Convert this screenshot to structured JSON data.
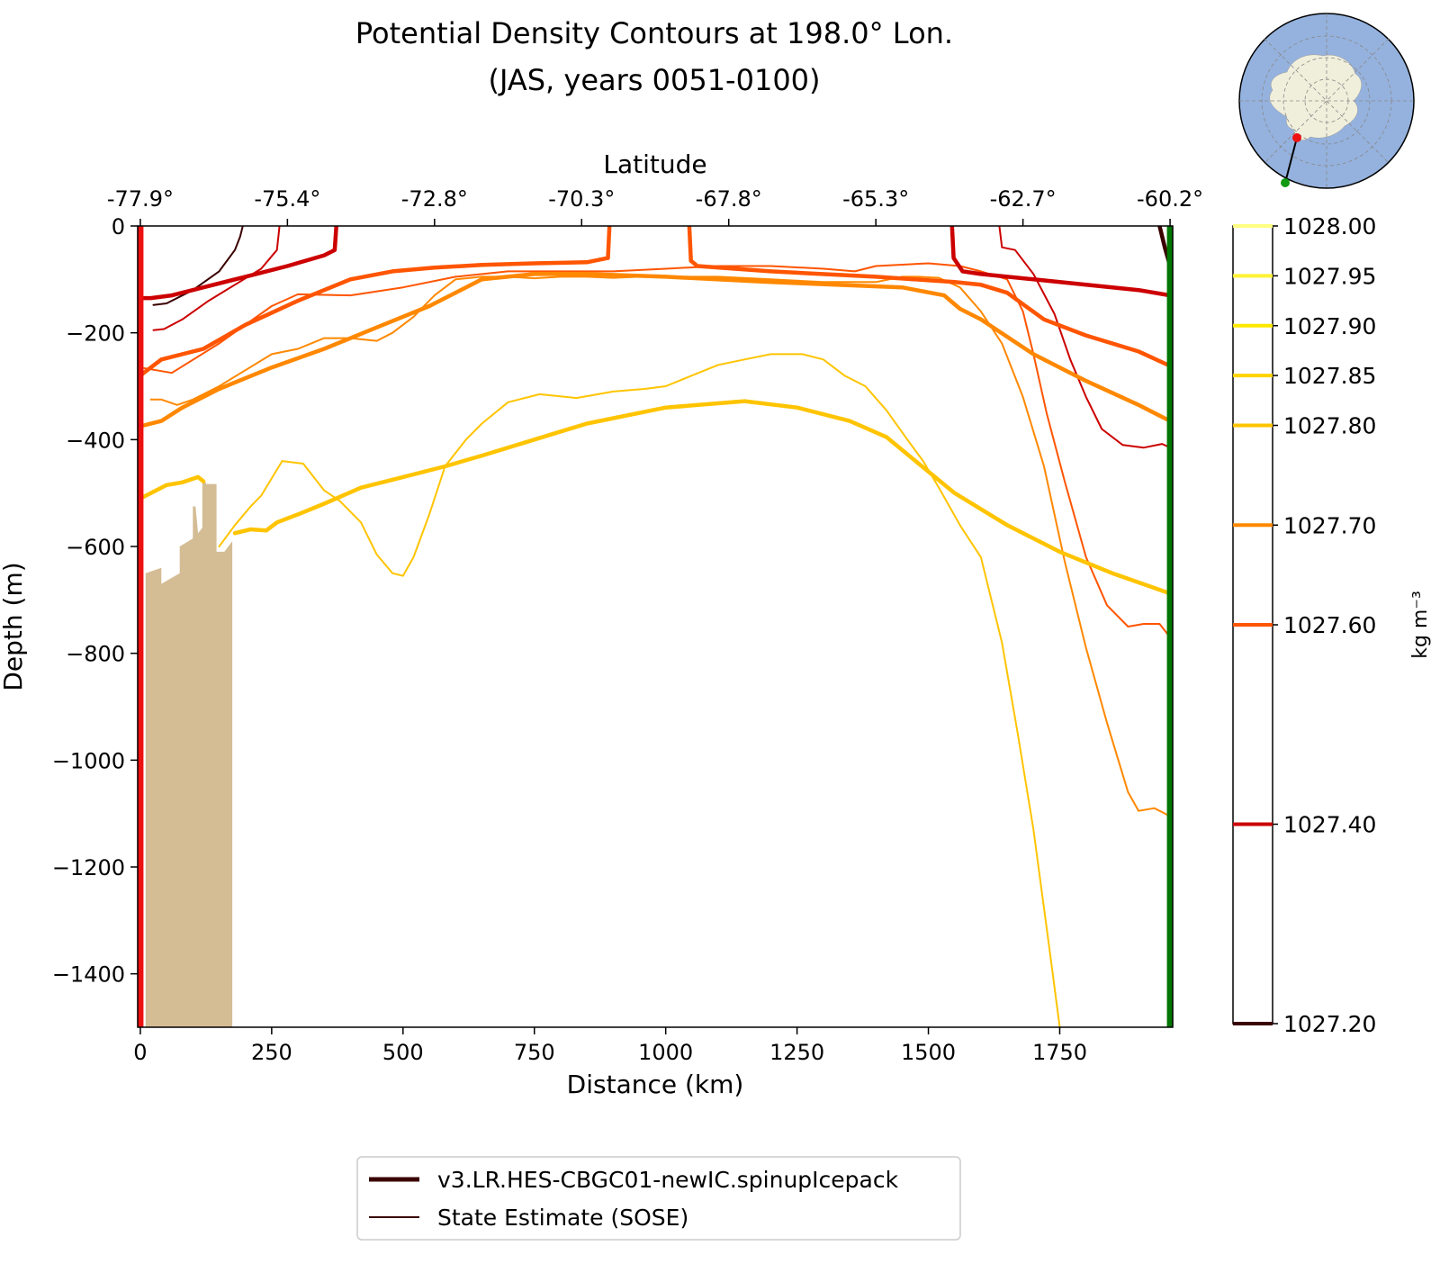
{
  "figure": {
    "title_line1": "Potential Density Contours at 198.0° Lon.",
    "title_line2": "(JAS, years 0051-0100)"
  },
  "chart_data": {
    "type": "line",
    "subtype": "contour-section",
    "title": "Potential Density Contours at 198.0° Lon. (JAS, years 0051-0100)",
    "xlabel": "Distance (km)",
    "ylabel": "Depth (m)",
    "top_xlabel": "Latitude",
    "xlim": [
      -5,
      1965
    ],
    "ylim": [
      -1500,
      0
    ],
    "x_ticks": [
      0,
      250,
      500,
      750,
      1000,
      1250,
      1500,
      1750
    ],
    "y_ticks": [
      0,
      -200,
      -400,
      -600,
      -800,
      -1000,
      -1200,
      -1400
    ],
    "x_tick_labels": [
      "0",
      "250",
      "500",
      "750",
      "1000",
      "1250",
      "1500",
      "1750"
    ],
    "y_tick_labels": [
      "0",
      "−200",
      "−400",
      "−600",
      "−800",
      "−1000",
      "−1200",
      "−1400"
    ],
    "top_ticks": [
      0,
      280,
      560,
      840,
      1120,
      1400,
      1680,
      1960
    ],
    "top_tick_labels": [
      "-77.9°",
      "-75.4°",
      "-72.8°",
      "-70.3°",
      "-67.8°",
      "-65.3°",
      "-62.7°",
      "-60.2°"
    ],
    "grid": false,
    "legend_position": "bottom-center",
    "legend": [
      {
        "label": "v3.LR.HES-CBGC01-newIC.spinupIcepack",
        "style": "thick"
      },
      {
        "label": "State Estimate (SOSE)",
        "style": "thin"
      }
    ],
    "colorbar": {
      "label": "kg m⁻³",
      "levels": [
        1027.2,
        1027.4,
        1027.6,
        1027.7,
        1027.8,
        1027.85,
        1027.9,
        1027.95,
        1028.0
      ],
      "tick_labels": [
        "1027.20",
        "1027.40",
        "1027.60",
        "1027.70",
        "1027.80",
        "1027.85",
        "1027.90",
        "1027.95",
        "1028.00"
      ],
      "colors": [
        "#3a0000",
        "#cc0000",
        "#ff5500",
        "#ff8800",
        "#ffc400",
        "#ffd300",
        "#ffe800",
        "#fff233",
        "#ffff80"
      ]
    },
    "markers": {
      "start_line_x": 0,
      "start_line_color": "#ee1111",
      "end_line_x": 1960,
      "end_line_color": "#007700"
    },
    "bathymetry": {
      "color": "#d4bc94",
      "x": [
        0,
        10,
        10,
        40,
        40,
        75,
        75,
        100,
        100,
        105,
        110,
        118,
        118,
        125,
        125,
        145,
        145,
        150,
        150,
        160,
        175,
        175
      ],
      "depth": [
        -1500,
        -1500,
        -650,
        -640,
        -670,
        -650,
        -600,
        -585,
        -525,
        -525,
        -575,
        -565,
        -480,
        -480,
        -483,
        -483,
        -610,
        -610,
        -610,
        -610,
        -590,
        -1500
      ]
    },
    "series": [
      {
        "model": "v3.LR.HES-CBGC01-newIC.spinupIcepack",
        "level": 1027.2,
        "segments": [
          {
            "x": [
              1940,
              1950,
              1960
            ],
            "y": [
              0,
              -40,
              -75
            ]
          }
        ]
      },
      {
        "model": "v3.LR.HES-CBGC01-newIC.spinupIcepack",
        "level": 1027.4,
        "segments": [
          {
            "x": [
              0,
              20,
              60,
              120,
              200,
              280,
              350,
              370,
              373
            ],
            "y": [
              -135,
              -135,
              -130,
              -115,
              -95,
              -75,
              -55,
              -45,
              0
            ]
          },
          {
            "x": [
              1545,
              1548,
              1565,
              1600,
              1700,
              1800,
              1900,
              1960
            ],
            "y": [
              0,
              -60,
              -85,
              -90,
              -100,
              -110,
              -120,
              -130
            ]
          }
        ]
      },
      {
        "model": "v3.LR.HES-CBGC01-newIC.spinupIcepack",
        "level": 1027.6,
        "segments": [
          {
            "x": [
              0,
              40,
              120,
              200,
              300,
              400,
              480,
              560,
              650,
              750,
              850,
              890,
              893
            ],
            "y": [
              -280,
              -250,
              -230,
              -185,
              -140,
              -100,
              -85,
              -78,
              -73,
              -70,
              -68,
              -60,
              0
            ]
          },
          {
            "x": [
              1045,
              1048,
              1060,
              1200,
              1400,
              1550,
              1600,
              1650,
              1720,
              1800,
              1900,
              1960
            ],
            "y": [
              0,
              -65,
              -75,
              -85,
              -95,
              -105,
              -110,
              -125,
              -175,
              -205,
              -235,
              -262
            ]
          }
        ]
      },
      {
        "model": "v3.LR.HES-CBGC01-newIC.spinupIcepack",
        "level": 1027.7,
        "segments": [
          {
            "x": [
              0,
              40,
              80,
              150,
              250,
              350,
              450,
              550,
              650,
              750,
              850,
              1000,
              1200,
              1450,
              1530,
              1560,
              1600,
              1700,
              1800,
              1900,
              1960
            ],
            "y": [
              -375,
              -365,
              -340,
              -305,
              -265,
              -230,
              -190,
              -150,
              -100,
              -90,
              -90,
              -95,
              -105,
              -115,
              -130,
              -155,
              -175,
              -240,
              -290,
              -335,
              -365
            ]
          }
        ]
      },
      {
        "model": "v3.LR.HES-CBGC01-newIC.spinupIcepack",
        "level": 1027.8,
        "segments": [
          {
            "x": [
              0,
              20,
              50,
              80,
              110,
              120
            ],
            "y": [
              -510,
              -500,
              -485,
              -480,
              -470,
              -478
            ]
          },
          {
            "x": [
              180,
              210,
              240,
              260,
              300,
              350,
              420,
              500,
              580,
              650,
              750,
              850,
              1000,
              1150,
              1250,
              1350,
              1420,
              1500,
              1550,
              1650,
              1750,
              1850,
              1960
            ],
            "y": [
              -575,
              -568,
              -570,
              -555,
              -540,
              -520,
              -490,
              -470,
              -450,
              -430,
              -400,
              -370,
              -340,
              -328,
              -340,
              -365,
              -395,
              -460,
              -500,
              -560,
              -610,
              -650,
              -688
            ]
          }
        ]
      },
      {
        "model": "State Estimate (SOSE)",
        "level": 1027.2,
        "segments": [
          {
            "x": [
              25,
              50,
              100,
              150,
              180,
              190,
              195
            ],
            "y": [
              -148,
              -145,
              -120,
              -85,
              -45,
              -20,
              0
            ]
          }
        ]
      },
      {
        "model": "State Estimate (SOSE)",
        "level": 1027.4,
        "segments": [
          {
            "x": [
              25,
              45,
              80,
              130,
              180,
              230,
              260,
              265
            ],
            "y": [
              -195,
              -193,
              -175,
              -140,
              -110,
              -80,
              -45,
              0
            ]
          },
          {
            "x": [
              1635,
              1640,
              1665,
              1700,
              1740,
              1770,
              1800,
              1830,
              1870,
              1910,
              1945,
              1960
            ],
            "y": [
              0,
              -40,
              -45,
              -90,
              -165,
              -250,
              -320,
              -380,
              -410,
              -415,
              -408,
              -415
            ]
          }
        ]
      },
      {
        "model": "State Estimate (SOSE)",
        "level": 1027.6,
        "segments": [
          {
            "x": [
              0,
              60,
              150,
              250,
              300,
              400,
              500,
              600,
              700,
              800,
              900,
              1000,
              1100,
              1200,
              1300,
              1360,
              1400,
              1500,
              1560,
              1600,
              1650,
              1680,
              1700,
              1725,
              1760,
              1800,
              1840,
              1880,
              1910,
              1940,
              1960
            ],
            "y": [
              -265,
              -275,
              -220,
              -150,
              -128,
              -130,
              -115,
              -95,
              -85,
              -85,
              -85,
              -80,
              -75,
              -75,
              -80,
              -85,
              -75,
              -70,
              -75,
              -85,
              -100,
              -160,
              -240,
              -350,
              -480,
              -620,
              -710,
              -750,
              -745,
              -745,
              -770
            ]
          }
        ]
      },
      {
        "model": "State Estimate (SOSE)",
        "level": 1027.7,
        "segments": [
          {
            "x": [
              20,
              40,
              70,
              100,
              150,
              200,
              250,
              300,
              350,
              400,
              450,
              480,
              520,
              560,
              600,
              650,
              700,
              750,
              800,
              850,
              900,
              950,
              1000,
              1100,
              1200,
              1300,
              1400,
              1450,
              1480,
              1520,
              1560,
              1600,
              1640,
              1680,
              1720,
              1760,
              1800,
              1840,
              1880,
              1900,
              1930,
              1960
            ],
            "y": [
              -325,
              -325,
              -335,
              -325,
              -300,
              -270,
              -240,
              -230,
              -210,
              -210,
              -215,
              -200,
              -170,
              -130,
              -100,
              -95,
              -95,
              -98,
              -95,
              -95,
              -97,
              -95,
              -95,
              -95,
              -100,
              -105,
              -105,
              -95,
              -95,
              -97,
              -115,
              -160,
              -220,
              -320,
              -450,
              -630,
              -790,
              -930,
              -1060,
              -1095,
              -1090,
              -1105
            ]
          }
        ]
      },
      {
        "model": "State Estimate (SOSE)",
        "level": 1027.8,
        "segments": [
          {
            "x": [
              150,
              180,
              210,
              230,
              270,
              310,
              350,
              380,
              420,
              450,
              480,
              500,
              520,
              550,
              580,
              620,
              650,
              700,
              760,
              830,
              900,
              960,
              1000,
              1050,
              1100,
              1150,
              1200,
              1260,
              1300,
              1340,
              1380,
              1420,
              1460,
              1490,
              1520,
              1560,
              1600,
              1640,
              1670,
              1700,
              1730,
              1750
            ],
            "y": [
              -600,
              -560,
              -525,
              -505,
              -440,
              -445,
              -495,
              -515,
              -555,
              -615,
              -650,
              -655,
              -620,
              -540,
              -450,
              -400,
              -370,
              -330,
              -315,
              -322,
              -310,
              -305,
              -300,
              -280,
              -260,
              -250,
              -240,
              -240,
              -250,
              -280,
              -300,
              -345,
              -400,
              -440,
              -490,
              -560,
              -620,
              -780,
              -950,
              -1130,
              -1350,
              -1500
            ]
          }
        ]
      }
    ]
  }
}
